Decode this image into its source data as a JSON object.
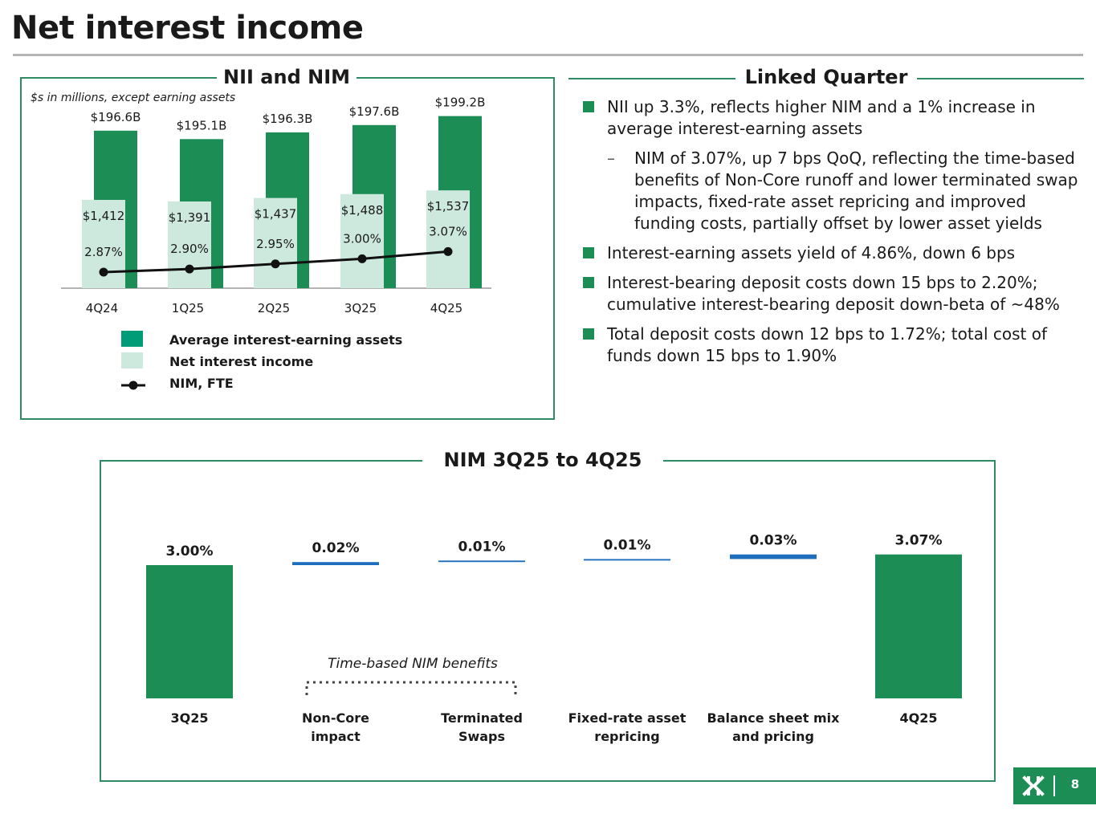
{
  "page_title": "Net interest income",
  "page_number": "8",
  "nii_panel": {
    "heading": "NII and NIM",
    "units_note": "$s in millions, except earning assets",
    "legend": [
      {
        "label": "Average interest-earning assets",
        "color": "#009c77"
      },
      {
        "label": "Net interest income",
        "color": "#cde9de"
      },
      {
        "label": "NIM, FTE",
        "color": "#111111"
      }
    ]
  },
  "linked_quarter": {
    "heading": "Linked Quarter",
    "bullets": [
      {
        "text": "NII up 3.3%, reflects higher NIM and a 1% increase in average interest-earning assets",
        "sub": false
      },
      {
        "text": "NIM of 3.07%, up 7 bps QoQ, reflecting the time-based benefits of Non-Core runoff and lower terminated swap impacts, fixed-rate asset repricing and improved funding costs, partially offset by lower asset yields",
        "sub": true
      },
      {
        "text": "Interest-earning assets yield of 4.86%, down 6 bps",
        "sub": false
      },
      {
        "text": "Interest-bearing deposit costs down 15 bps to 2.20%; cumulative interest-bearing deposit down-beta of ~48%",
        "sub": false
      },
      {
        "text": "Total deposit costs down 12 bps to 1.72%; total cost of funds down 15 bps to 1.90%",
        "sub": false
      }
    ]
  },
  "waterfall_panel": {
    "heading": "NIM 3Q25 to 4Q25",
    "bracket_label": "Time-based NIM benefits"
  },
  "colors": {
    "dark_green": "#1b8d55",
    "light_green": "#cde9de",
    "blue": "#1f6dbd",
    "frame_green": "#2e8b62"
  },
  "chart_data": [
    {
      "type": "bar",
      "title": "NII and NIM",
      "categories": [
        "4Q24",
        "1Q25",
        "2Q25",
        "3Q25",
        "4Q25"
      ],
      "series": [
        {
          "name": "Average interest-earning assets",
          "values": [
            196.6,
            195.1,
            196.3,
            197.6,
            199.2
          ],
          "labels": [
            "$196.6B",
            "$195.1B",
            "$196.3B",
            "$197.6B",
            "$199.2B"
          ]
        },
        {
          "name": "Net interest income",
          "values": [
            1412,
            1391,
            1437,
            1488,
            1537
          ],
          "labels": [
            "$1,412",
            "$1,391",
            "$1,437",
            "$1,488",
            "$1,537"
          ]
        },
        {
          "name": "NIM, FTE",
          "type": "line",
          "values": [
            2.87,
            2.9,
            2.95,
            3.0,
            3.07
          ],
          "labels": [
            "2.87%",
            "2.90%",
            "2.95%",
            "3.00%",
            "3.07%"
          ]
        }
      ],
      "ylabel": "$s in millions, except earning assets"
    },
    {
      "type": "bar",
      "subtype": "waterfall",
      "title": "NIM 3Q25 to 4Q25",
      "categories": [
        "3Q25",
        "Non-Core impact",
        "Terminated Swaps",
        "Fixed-rate asset repricing",
        "Balance sheet mix and pricing",
        "4Q25"
      ],
      "category_lines": [
        [
          "3Q25"
        ],
        [
          "Non-Core",
          "impact"
        ],
        [
          "Terminated",
          "Swaps"
        ],
        [
          "Fixed-rate asset",
          "repricing"
        ],
        [
          "Balance sheet mix",
          "and pricing"
        ],
        [
          "4Q25"
        ]
      ],
      "values": [
        3.0,
        0.02,
        0.01,
        0.01,
        0.03,
        3.07
      ],
      "labels": [
        "3.00%",
        "0.02%",
        "0.01%",
        "0.01%",
        "0.03%",
        "3.07%"
      ],
      "kinds": [
        "total",
        "delta",
        "delta",
        "delta",
        "delta",
        "total"
      ],
      "annotation": "Time-based NIM benefits"
    }
  ]
}
